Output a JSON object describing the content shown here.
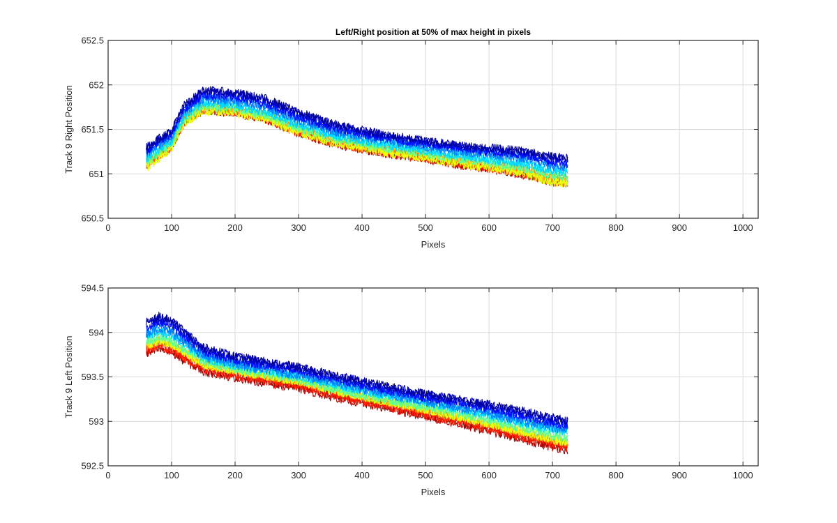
{
  "chart_data": [
    {
      "type": "line",
      "title": "Left/Right position at 50% of max height in pixels",
      "xlabel": "Pixels",
      "ylabel": "Track 9 Right Position",
      "xlim": [
        0,
        1024
      ],
      "ylim": [
        650.5,
        652.5
      ],
      "xticks": [
        "0",
        "100",
        "200",
        "300",
        "400",
        "500",
        "600",
        "700",
        "800",
        "900",
        "1000"
      ],
      "yticks": [
        "650.5",
        "651",
        "651.5",
        "652",
        "652.5"
      ],
      "grid": true,
      "legend": "none",
      "colormap": "jet",
      "x_range": [
        60,
        724
      ],
      "series_profiles": [
        {
          "name": "",
          "color": "#0000a8",
          "x": [
            60,
            75,
            100,
            120,
            150,
            200,
            250,
            300,
            350,
            400,
            450,
            500,
            550,
            600,
            650,
            700,
            724
          ],
          "y": [
            651.3,
            651.38,
            651.5,
            651.78,
            651.95,
            651.92,
            651.85,
            651.7,
            651.58,
            651.5,
            651.43,
            651.38,
            651.33,
            651.3,
            651.27,
            651.2,
            651.18
          ]
        },
        {
          "name": "",
          "color": "#0010ff",
          "x": [
            60,
            75,
            100,
            120,
            150,
            200,
            250,
            300,
            350,
            400,
            450,
            500,
            550,
            600,
            650,
            700,
            724
          ],
          "y": [
            651.27,
            651.35,
            651.46,
            651.74,
            651.9,
            651.88,
            651.8,
            651.65,
            651.54,
            651.46,
            651.4,
            651.35,
            651.3,
            651.26,
            651.23,
            651.15,
            651.13
          ]
        },
        {
          "name": "",
          "color": "#0080ff",
          "x": [
            60,
            75,
            100,
            120,
            150,
            200,
            250,
            300,
            350,
            400,
            450,
            500,
            550,
            600,
            650,
            700,
            724
          ],
          "y": [
            651.22,
            651.3,
            651.42,
            651.7,
            651.85,
            651.82,
            651.75,
            651.6,
            651.49,
            651.42,
            651.36,
            651.31,
            651.26,
            651.22,
            651.18,
            651.09,
            651.07
          ]
        },
        {
          "name": "",
          "color": "#00d8ff",
          "x": [
            60,
            75,
            100,
            120,
            150,
            200,
            250,
            300,
            350,
            400,
            450,
            500,
            550,
            600,
            650,
            700,
            724
          ],
          "y": [
            651.18,
            651.26,
            651.38,
            651.66,
            651.81,
            651.78,
            651.7,
            651.56,
            651.45,
            651.38,
            651.32,
            651.27,
            651.22,
            651.17,
            651.13,
            651.04,
            651.02
          ]
        },
        {
          "name": "",
          "color": "#60ff90",
          "x": [
            60,
            75,
            100,
            120,
            150,
            200,
            250,
            300,
            350,
            400,
            450,
            500,
            550,
            600,
            650,
            700,
            724
          ],
          "y": [
            651.14,
            651.22,
            651.34,
            651.62,
            651.77,
            651.74,
            651.66,
            651.52,
            651.41,
            651.34,
            651.28,
            651.23,
            651.18,
            651.13,
            651.08,
            650.99,
            650.97
          ]
        },
        {
          "name": "",
          "color": "#e8ff10",
          "x": [
            60,
            75,
            100,
            120,
            150,
            200,
            250,
            300,
            350,
            400,
            450,
            500,
            550,
            600,
            650,
            700,
            724
          ],
          "y": [
            651.08,
            651.16,
            651.3,
            651.58,
            651.72,
            651.7,
            651.62,
            651.48,
            651.37,
            651.3,
            651.24,
            651.19,
            651.13,
            651.08,
            651.02,
            650.92,
            650.9
          ]
        },
        {
          "name": "",
          "color": "#ff8c00",
          "x": [
            60,
            75,
            100,
            120,
            150,
            200,
            250,
            300,
            350,
            400,
            450,
            500,
            550,
            600,
            650,
            700,
            724
          ],
          "y": [
            651.12,
            651.2,
            651.33,
            651.61,
            651.75,
            651.72,
            651.64,
            651.5,
            651.39,
            651.32,
            651.26,
            651.21,
            651.15,
            651.1,
            651.05,
            650.96,
            650.94
          ]
        },
        {
          "name": "",
          "color": "#ff2000",
          "x": [
            60,
            75,
            100,
            120,
            150,
            200,
            250,
            300,
            350,
            400,
            450,
            500,
            550,
            600,
            650,
            700,
            724
          ],
          "y": [
            651.1,
            651.18,
            651.31,
            651.59,
            651.73,
            651.7,
            651.62,
            651.47,
            651.36,
            651.29,
            651.23,
            651.18,
            651.12,
            651.07,
            651.01,
            650.92,
            650.9
          ]
        },
        {
          "name": "",
          "color": "#b00000",
          "x": [
            60,
            75,
            100,
            120,
            150,
            200,
            250,
            300,
            350,
            400,
            450,
            500,
            550,
            600,
            650,
            700,
            724
          ],
          "y": [
            651.08,
            651.16,
            651.29,
            651.57,
            651.71,
            651.68,
            651.6,
            651.45,
            651.34,
            651.27,
            651.21,
            651.16,
            651.1,
            651.05,
            650.99,
            650.9,
            650.88
          ]
        }
      ]
    },
    {
      "type": "line",
      "title": "",
      "xlabel": "Pixels",
      "ylabel": "Track 9 Left Position",
      "xlim": [
        0,
        1024
      ],
      "ylim": [
        592.5,
        594.5
      ],
      "xticks": [
        "0",
        "100",
        "200",
        "300",
        "400",
        "500",
        "600",
        "700",
        "800",
        "900",
        "1000"
      ],
      "yticks": [
        "592.5",
        "593",
        "593.5",
        "594",
        "594.5"
      ],
      "grid": true,
      "legend": "none",
      "colormap": "jet",
      "x_range": [
        60,
        724
      ],
      "series_profiles": [
        {
          "name": "",
          "color": "#0000a8",
          "x": [
            60,
            80,
            100,
            120,
            150,
            200,
            250,
            300,
            350,
            400,
            450,
            500,
            550,
            600,
            650,
            700,
            724
          ],
          "y": [
            594.1,
            594.17,
            594.12,
            594.0,
            593.82,
            593.72,
            593.66,
            593.6,
            593.52,
            593.44,
            593.37,
            593.3,
            593.24,
            593.18,
            593.11,
            593.03,
            593.0
          ]
        },
        {
          "name": "",
          "color": "#0010ff",
          "x": [
            60,
            80,
            100,
            120,
            150,
            200,
            250,
            300,
            350,
            400,
            450,
            500,
            550,
            600,
            650,
            700,
            724
          ],
          "y": [
            594.05,
            594.12,
            594.07,
            593.95,
            593.78,
            593.68,
            593.62,
            593.56,
            593.48,
            593.4,
            593.33,
            593.26,
            593.2,
            593.14,
            593.06,
            592.98,
            592.95
          ]
        },
        {
          "name": "",
          "color": "#0080ff",
          "x": [
            60,
            80,
            100,
            120,
            150,
            200,
            250,
            300,
            350,
            400,
            450,
            500,
            550,
            600,
            650,
            700,
            724
          ],
          "y": [
            594.0,
            594.06,
            594.01,
            593.9,
            593.74,
            593.65,
            593.59,
            593.53,
            593.45,
            593.37,
            593.3,
            593.23,
            593.17,
            593.1,
            593.02,
            592.94,
            592.91
          ]
        },
        {
          "name": "",
          "color": "#00d8ff",
          "x": [
            60,
            80,
            100,
            120,
            150,
            200,
            250,
            300,
            350,
            400,
            450,
            500,
            550,
            600,
            650,
            700,
            724
          ],
          "y": [
            593.95,
            594.01,
            593.96,
            593.86,
            593.71,
            593.62,
            593.56,
            593.5,
            593.42,
            593.34,
            593.27,
            593.2,
            593.13,
            593.06,
            592.98,
            592.9,
            592.87
          ]
        },
        {
          "name": "",
          "color": "#60ff90",
          "x": [
            60,
            80,
            100,
            120,
            150,
            200,
            250,
            300,
            350,
            400,
            450,
            500,
            550,
            600,
            650,
            700,
            724
          ],
          "y": [
            593.9,
            593.96,
            593.92,
            593.82,
            593.68,
            593.6,
            593.54,
            593.48,
            593.39,
            593.31,
            593.24,
            593.17,
            593.1,
            593.02,
            592.94,
            592.85,
            592.82
          ]
        },
        {
          "name": "",
          "color": "#e8ff10",
          "x": [
            60,
            80,
            100,
            120,
            150,
            200,
            250,
            300,
            350,
            400,
            450,
            500,
            550,
            600,
            650,
            700,
            724
          ],
          "y": [
            593.86,
            593.92,
            593.88,
            593.79,
            593.65,
            593.58,
            593.52,
            593.46,
            593.37,
            593.29,
            593.22,
            593.15,
            593.07,
            592.99,
            592.9,
            592.81,
            592.78
          ]
        },
        {
          "name": "",
          "color": "#ff8c00",
          "x": [
            60,
            80,
            100,
            120,
            150,
            200,
            250,
            300,
            350,
            400,
            450,
            500,
            550,
            600,
            650,
            700,
            724
          ],
          "y": [
            593.84,
            593.9,
            593.86,
            593.77,
            593.63,
            593.56,
            593.5,
            593.44,
            593.35,
            593.27,
            593.2,
            593.12,
            593.04,
            592.96,
            592.87,
            592.78,
            592.75
          ]
        },
        {
          "name": "",
          "color": "#ff2000",
          "x": [
            60,
            80,
            100,
            120,
            150,
            200,
            250,
            300,
            350,
            400,
            450,
            500,
            550,
            600,
            650,
            700,
            724
          ],
          "y": [
            593.8,
            593.86,
            593.82,
            593.73,
            593.6,
            593.53,
            593.47,
            593.41,
            593.32,
            593.24,
            593.17,
            593.09,
            593.01,
            592.93,
            592.84,
            592.75,
            592.72
          ]
        },
        {
          "name": "",
          "color": "#b00000",
          "x": [
            60,
            80,
            100,
            120,
            150,
            200,
            250,
            300,
            350,
            400,
            450,
            500,
            550,
            600,
            650,
            700,
            724
          ],
          "y": [
            593.76,
            593.82,
            593.78,
            593.69,
            593.57,
            593.5,
            593.44,
            593.38,
            593.29,
            593.21,
            593.14,
            593.06,
            592.98,
            592.9,
            592.81,
            592.72,
            592.69
          ]
        }
      ]
    }
  ]
}
